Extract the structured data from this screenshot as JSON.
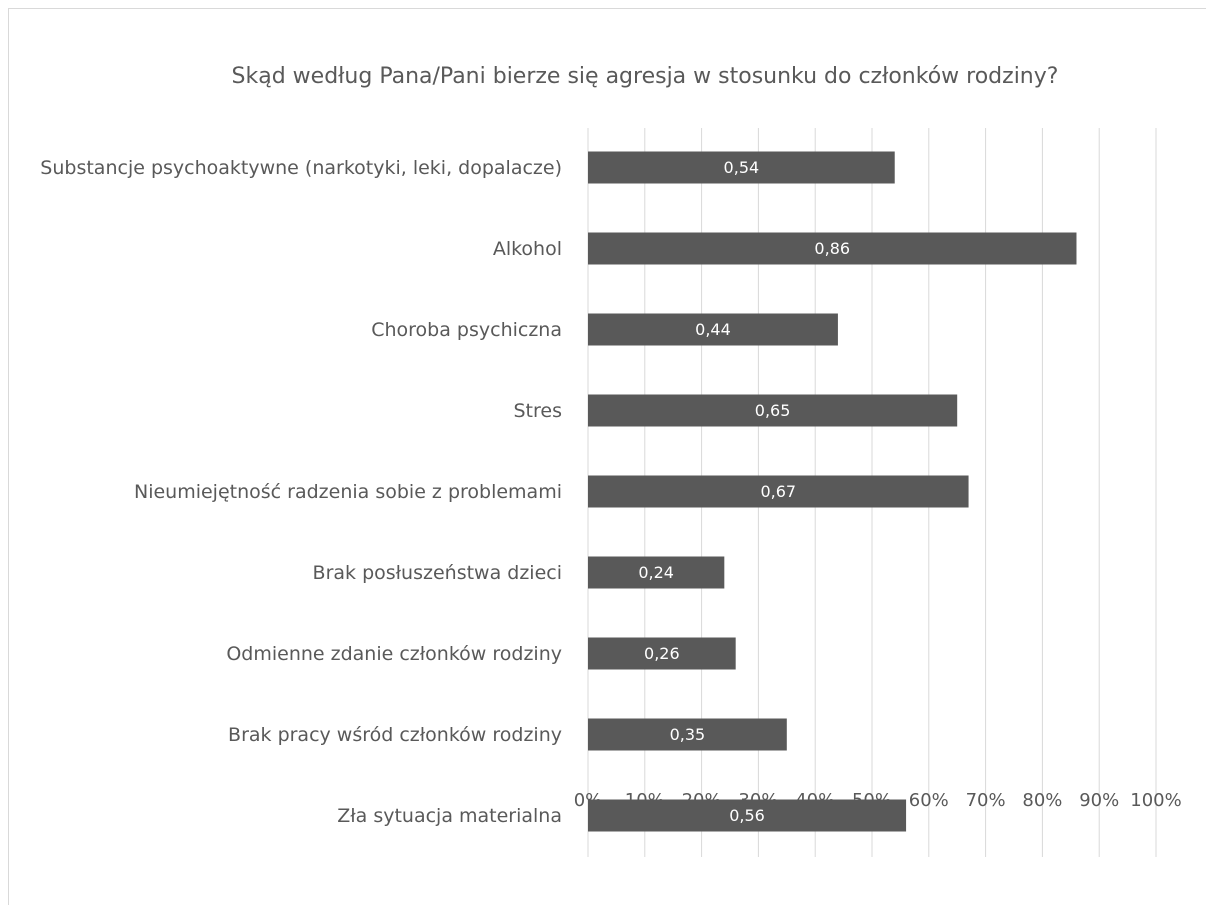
{
  "chart_data": {
    "type": "bar",
    "orientation": "horizontal",
    "title": "Skąd według Pana/Pani bierze się agresja w stosunku do członków rodziny?",
    "categories": [
      "Substancje psychoaktywne (narkotyki, leki, dopalacze)",
      "Alkohol",
      "Choroba psychiczna",
      "Stres",
      "Nieumiejętność radzenia sobie z problemami",
      "Brak posłuszeństwa dzieci",
      "Odmienne zdanie członków rodziny",
      "Brak pracy wśród członków rodziny",
      "Zła sytuacja materialna"
    ],
    "values": [
      0.54,
      0.86,
      0.44,
      0.65,
      0.67,
      0.24,
      0.26,
      0.35,
      0.56
    ],
    "value_labels": [
      "0,54",
      "0,86",
      "0,44",
      "0,65",
      "0,67",
      "0,24",
      "0,26",
      "0,35",
      "0,56"
    ],
    "color": "#595959",
    "xlim": [
      0,
      1
    ],
    "xticks": [
      {
        "value": 0,
        "label": "0%"
      },
      {
        "value": 0.1,
        "label": "10%"
      },
      {
        "value": 0.2,
        "label": "20%"
      },
      {
        "value": 0.3,
        "label": "30%"
      },
      {
        "value": 0.4,
        "label": "40%"
      },
      {
        "value": 0.5,
        "label": "50%"
      },
      {
        "value": 0.6,
        "label": "60%"
      },
      {
        "value": 0.7,
        "label": "70%"
      },
      {
        "value": 0.8,
        "label": "80%"
      },
      {
        "value": 0.9,
        "label": "90%"
      },
      {
        "value": 1,
        "label": "100%"
      }
    ],
    "grid": true
  }
}
